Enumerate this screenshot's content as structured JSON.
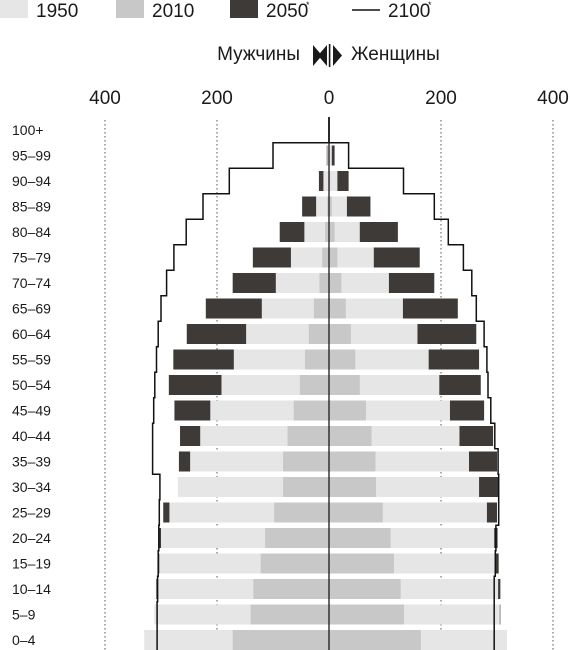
{
  "chart_data": {
    "type": "population-pyramid",
    "x_axis": {
      "left_label": "Мужчины",
      "right_label": "Женщины",
      "ticks": [
        400,
        200,
        0,
        200,
        400
      ],
      "range": [
        -400,
        400
      ],
      "gridlines": "dotted at 200 and 400 on each side"
    },
    "legend": [
      {
        "key": "y1950",
        "label": "1950",
        "sup": "",
        "swatch": "bar",
        "color": "#e6e6e6"
      },
      {
        "key": "y2010",
        "label": "2010",
        "sup": "",
        "swatch": "bar",
        "color": "#c8c8c8"
      },
      {
        "key": "y2050",
        "label": "2050",
        "sup": "*",
        "swatch": "bar",
        "color": "#3d3a37"
      },
      {
        "key": "y2100",
        "label": "2100",
        "sup": "*",
        "swatch": "line",
        "color": "#111111"
      }
    ],
    "age_groups": [
      "0–4",
      "5–9",
      "10–14",
      "15–19",
      "20–24",
      "25–29",
      "30–34",
      "35–39",
      "40–44",
      "45–49",
      "50–54",
      "55–59",
      "60–64",
      "65–69",
      "70–74",
      "75–79",
      "80–84",
      "85–89",
      "90–94",
      "95–99",
      "100+"
    ],
    "series": [
      {
        "key": "y1950",
        "name": "1950",
        "male": [
          330,
          312,
          308,
          303,
          300,
          285,
          270,
          248,
          230,
          212,
          192,
          170,
          148,
          120,
          95,
          68,
          44,
          23,
          10,
          3,
          0
        ],
        "female": [
          318,
          305,
          302,
          298,
          295,
          282,
          268,
          250,
          233,
          216,
          197,
          178,
          158,
          132,
          107,
          80,
          55,
          32,
          15,
          5,
          1
        ]
      },
      {
        "key": "y2010",
        "name": "2010",
        "male": [
          172,
          140,
          135,
          122,
          114,
          98,
          82,
          82,
          74,
          63,
          52,
          43,
          36,
          27,
          17,
          12,
          7,
          3,
          1,
          0,
          0
        ],
        "female": [
          164,
          134,
          128,
          116,
          110,
          96,
          84,
          83,
          76,
          66,
          55,
          47,
          39,
          30,
          22,
          15,
          10,
          5,
          2,
          0,
          0
        ]
      },
      {
        "key": "y2050",
        "name": "2050",
        "male": [
          308,
          309,
          309,
          306,
          304,
          296,
          260,
          268,
          266,
          276,
          286,
          278,
          254,
          220,
          172,
          136,
          88,
          48,
          18,
          4,
          0
        ],
        "female": [
          304,
          306,
          306,
          303,
          301,
          300,
          302,
          300,
          293,
          277,
          271,
          268,
          263,
          230,
          188,
          162,
          123,
          74,
          35,
          10,
          0
        ]
      },
      {
        "key": "y2100",
        "name": "2100",
        "male": [
          307,
          307,
          306,
          305,
          304,
          303,
          302,
          315,
          315,
          313,
          311,
          308,
          305,
          300,
          290,
          277,
          255,
          225,
          178,
          100,
          0
        ],
        "female": [
          295,
          295,
          295,
          297,
          298,
          303,
          303,
          302,
          296,
          289,
          284,
          282,
          277,
          263,
          255,
          240,
          213,
          188,
          133,
          35,
          0
        ]
      }
    ]
  }
}
